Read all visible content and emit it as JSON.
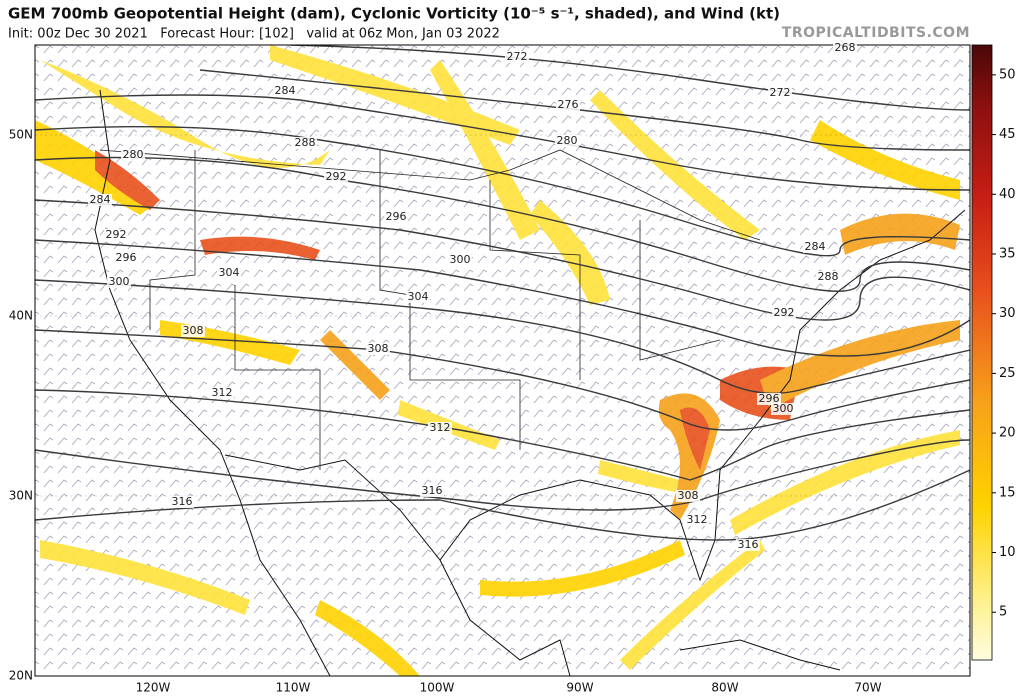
{
  "header": {
    "title": "GEM 700mb Geopotential Height (dam), Cyclonic Vorticity (10⁻⁵ s⁻¹, shaded), and Wind (kt)",
    "subtitle": "Init: 00z Dec 30 2021   Forecast Hour: [102]   valid at 06z Mon, Jan 03 2022",
    "brand": "TROPICALTIDBITS.COM"
  },
  "axes": {
    "lat_labels": [
      "50N",
      "40N",
      "30N",
      "20N"
    ],
    "lon_labels": [
      "120W",
      "110W",
      "100W",
      "90W",
      "80W",
      "70W"
    ]
  },
  "colorbar": {
    "ticks": [
      5,
      10,
      15,
      20,
      25,
      30,
      35,
      40,
      45,
      50
    ]
  },
  "contour_labels": [
    272,
    276,
    280,
    284,
    288,
    292,
    296,
    300,
    304,
    308,
    312,
    316,
    280,
    284,
    292,
    296,
    300,
    304,
    308,
    312,
    316,
    272,
    268,
    284,
    288,
    292,
    296,
    300,
    308,
    312,
    316
  ]
}
